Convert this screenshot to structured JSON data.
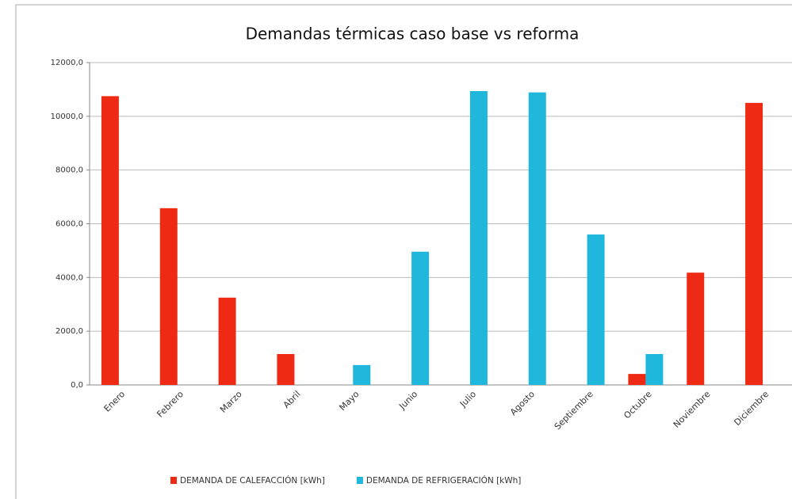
{
  "chart_data": {
    "type": "bar",
    "title": "Demandas térmicas caso base vs reforma",
    "categories": [
      "Enero",
      "Febrero",
      "Marzo",
      "Abril",
      "Mayo",
      "Junio",
      "Julio",
      "Agosto",
      "Septiembre",
      "Octubre",
      "Noviembre",
      "Diciembre"
    ],
    "series": [
      {
        "name": "DEMANDA DE CALEFACCIÓN [kWh]",
        "color": "#ee2a14",
        "values": [
          10750,
          6580,
          3250,
          1150,
          0,
          0,
          0,
          0,
          0,
          410,
          4180,
          10500
        ]
      },
      {
        "name": "DEMANDA DE REFRIGERACIÓN [kWh]",
        "color": "#1fb8dc",
        "values": [
          0,
          0,
          0,
          0,
          740,
          4960,
          10940,
          10890,
          5600,
          1150,
          0,
          0
        ]
      }
    ],
    "ylim": [
      0,
      12000
    ],
    "yticks": [
      {
        "value": 0,
        "label": "0,0"
      },
      {
        "value": 2000,
        "label": "2000,0"
      },
      {
        "value": 4000,
        "label": "4000,0"
      },
      {
        "value": 6000,
        "label": "6000,0"
      },
      {
        "value": 8000,
        "label": "8000,0"
      },
      {
        "value": 10000,
        "label": "10000,0"
      },
      {
        "value": 12000,
        "label": "12000,0"
      }
    ],
    "grid": true,
    "legend": "bottom"
  }
}
